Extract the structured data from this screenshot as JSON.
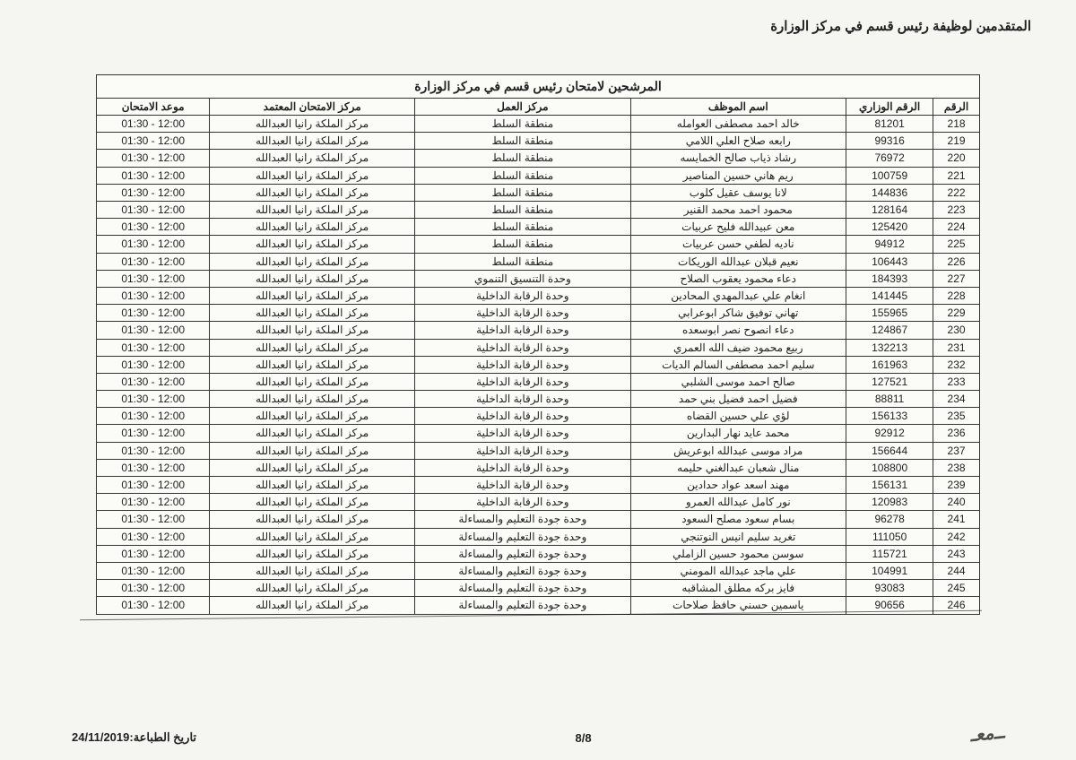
{
  "doc_title": "المتقدمين لوظيفة رئيس قسم في مركز الوزارة",
  "table_caption": "المرشحين لامتحان رئيس قسم في مركز الوزارة",
  "columns": {
    "num": "الرقم",
    "ministry_no": "الرقم الوزاري",
    "employee": "اسم الموظف",
    "work_center": "مركز العمل",
    "exam_center": "مركز الامتحان المعتمد",
    "exam_time": "موعد الامتحان"
  },
  "exam_center_common": "مركز الملكة رانيا العبدالله",
  "exam_time_common": "01:30 - 12:00",
  "rows": [
    {
      "n": "218",
      "m": "81201",
      "e": "خالد احمد مصطفى العوامله",
      "w": "منطقة السلط"
    },
    {
      "n": "219",
      "m": "99316",
      "e": "رابعه صلاح العلي اللامي",
      "w": "منطقة السلط"
    },
    {
      "n": "220",
      "m": "76972",
      "e": "رشاد ذياب صالح الخمايسه",
      "w": "منطقة السلط"
    },
    {
      "n": "221",
      "m": "100759",
      "e": "ريم هاني حسين المناصير",
      "w": "منطقة السلط"
    },
    {
      "n": "222",
      "m": "144836",
      "e": "لانا يوسف عقيل كلوب",
      "w": "منطقة السلط"
    },
    {
      "n": "223",
      "m": "128164",
      "e": "محمود احمد محمد القنير",
      "w": "منطقة السلط"
    },
    {
      "n": "224",
      "m": "125420",
      "e": "معن عبيدالله فليح عربيات",
      "w": "منطقة السلط"
    },
    {
      "n": "225",
      "m": "94912",
      "e": "ناديه لطفي حسن عربيات",
      "w": "منطقة السلط"
    },
    {
      "n": "226",
      "m": "106443",
      "e": "نعيم قبلان عبدالله الوريكات",
      "w": "منطقة السلط"
    },
    {
      "n": "227",
      "m": "184393",
      "e": "دعاء محمود يعقوب الصلاح",
      "w": "وحدة التنسيق التنموي"
    },
    {
      "n": "228",
      "m": "141445",
      "e": "انغام علي عبدالمهدي المحادين",
      "w": "وحدة الرقابة الداخلية"
    },
    {
      "n": "229",
      "m": "155965",
      "e": "تهاني توفيق شاكر ابوعرابي",
      "w": "وحدة الرقابة الداخلية"
    },
    {
      "n": "230",
      "m": "124867",
      "e": "دعاء انصوح نصر ابوسعده",
      "w": "وحدة الرقابة الداخلية"
    },
    {
      "n": "231",
      "m": "132213",
      "e": "ربيع محمود ضيف الله العمري",
      "w": "وحدة الرقابة الداخلية"
    },
    {
      "n": "232",
      "m": "161963",
      "e": "سليم احمد مصطفى السالم الديات",
      "w": "وحدة الرقابة الداخلية"
    },
    {
      "n": "233",
      "m": "127521",
      "e": "صالح احمد موسى الشلبي",
      "w": "وحدة الرقابة الداخلية"
    },
    {
      "n": "234",
      "m": "88811",
      "e": "فضيل احمد فضيل بني حمد",
      "w": "وحدة الرقابة الداخلية"
    },
    {
      "n": "235",
      "m": "156133",
      "e": "لؤي علي حسين القضاه",
      "w": "وحدة الرقابة الداخلية"
    },
    {
      "n": "236",
      "m": "92912",
      "e": "محمد عايد نهار البدارين",
      "w": "وحدة الرقابة الداخلية"
    },
    {
      "n": "237",
      "m": "156644",
      "e": "مراد موسى عبدالله ابوعريش",
      "w": "وحدة الرقابة الداخلية"
    },
    {
      "n": "238",
      "m": "108800",
      "e": "منال شعبان عبدالغني حليمه",
      "w": "وحدة الرقابة الداخلية"
    },
    {
      "n": "239",
      "m": "156131",
      "e": "مهند اسعد عواد حدادين",
      "w": "وحدة الرقابة الداخلية"
    },
    {
      "n": "240",
      "m": "120983",
      "e": "نور كامل عبدالله العمرو",
      "w": "وحدة الرقابة الداخلية"
    },
    {
      "n": "241",
      "m": "96278",
      "e": "بسام سعود مصلح السعود",
      "w": "وحدة جودة التعليم والمساءلة"
    },
    {
      "n": "242",
      "m": "111050",
      "e": "تغريد سليم انيس النوتنجي",
      "w": "وحدة جودة التعليم والمساءلة"
    },
    {
      "n": "243",
      "m": "115721",
      "e": "سوسن محمود حسين الزاملي",
      "w": "وحدة جودة التعليم والمساءلة"
    },
    {
      "n": "244",
      "m": "104991",
      "e": "علي ماجد عبدالله المومني",
      "w": "وحدة جودة التعليم والمساءلة"
    },
    {
      "n": "245",
      "m": "93083",
      "e": "فايز بركه مطلق المشاقبه",
      "w": "وحدة جودة التعليم والمساءلة"
    },
    {
      "n": "246",
      "m": "90656",
      "e": "ياسمين حسني حافظ صلاحات",
      "w": "وحدة جودة التعليم والمساءلة"
    }
  ],
  "footer": {
    "page": "8/8",
    "print_date_label": "تاريخ الطباعة:",
    "print_date": "24/11/2019"
  }
}
